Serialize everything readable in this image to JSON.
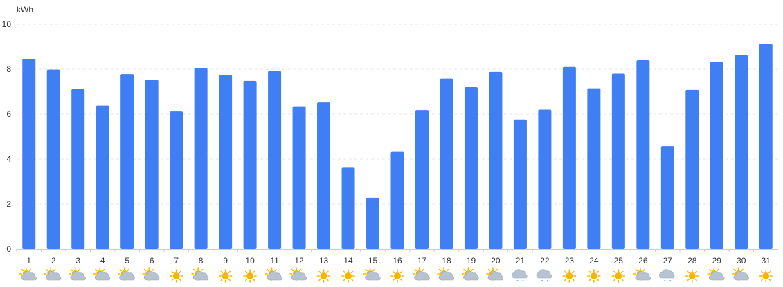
{
  "chart_data": {
    "type": "bar",
    "ylabel": "kWh",
    "ylim": [
      0,
      10
    ],
    "yticks": [
      0,
      2,
      4,
      6,
      8,
      10
    ],
    "grid": true,
    "legend": "none",
    "bar_color": "#3f7ef3",
    "categories": [
      "1",
      "2",
      "3",
      "4",
      "5",
      "6",
      "7",
      "8",
      "9",
      "10",
      "11",
      "12",
      "13",
      "14",
      "15",
      "16",
      "17",
      "18",
      "19",
      "20",
      "21",
      "22",
      "23",
      "24",
      "25",
      "26",
      "27",
      "28",
      "29",
      "30",
      "31"
    ],
    "values": [
      8.45,
      7.98,
      7.12,
      6.38,
      7.78,
      7.52,
      6.12,
      8.05,
      7.75,
      7.48,
      7.92,
      6.35,
      6.52,
      3.62,
      2.28,
      4.32,
      6.18,
      7.58,
      7.2,
      7.88,
      5.76,
      6.2,
      8.1,
      7.15,
      7.8,
      8.4,
      4.58,
      7.08,
      8.32,
      8.62,
      9.12
    ],
    "weather_icons": [
      "partly-cloudy-icon",
      "partly-cloudy-icon",
      "partly-cloudy-icon",
      "partly-cloudy-icon",
      "partly-cloudy-icon",
      "partly-cloudy-icon",
      "sun-icon",
      "partly-cloudy-icon",
      "sun-icon",
      "sun-icon",
      "partly-cloudy-icon",
      "partly-cloudy-icon",
      "sun-icon",
      "sun-icon",
      "partly-cloudy-icon",
      "sun-icon",
      "partly-cloudy-icon",
      "partly-cloudy-icon",
      "partly-cloudy-icon",
      "partly-cloudy-icon",
      "rain-cloud-icon",
      "rain-cloud-icon",
      "sun-icon",
      "sun-icon",
      "sun-icon",
      "partly-cloudy-icon",
      "rain-cloud-icon",
      "sun-icon",
      "partly-cloudy-icon",
      "partly-cloudy-icon",
      "sun-icon"
    ],
    "colors": {
      "sun": "#f7b500",
      "cloud": "#b7c3d0",
      "cloud_stroke": "#9aa8b6",
      "rain": "#5cc6e6",
      "grid": "#e6e6e6",
      "axis": "#cccccc",
      "text": "#333333"
    }
  }
}
